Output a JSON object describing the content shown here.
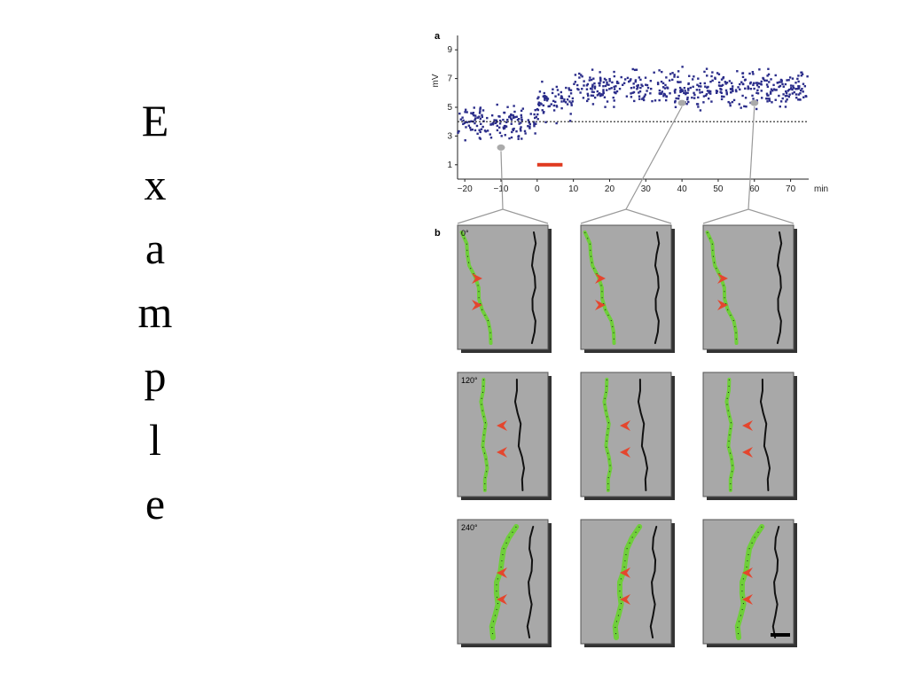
{
  "slide": {
    "letters": [
      "E",
      "x",
      "a",
      "m",
      "p",
      "l",
      "e"
    ]
  },
  "chart_data": {
    "type": "scatter",
    "panel_label": "a",
    "ylabel": "mV",
    "xlabel": "min",
    "x_ticks": [
      "−20",
      "−10",
      "0",
      "10",
      "20",
      "30",
      "40",
      "50",
      "60",
      "70"
    ],
    "y_ticks": [
      "1",
      "3",
      "5",
      "7",
      "9"
    ],
    "xlim": [
      -22,
      75
    ],
    "ylim": [
      0,
      10
    ],
    "baseline_mv": 4.0,
    "stimulus_bar": {
      "x_start": 0,
      "x_end": 7,
      "y": 1.0
    },
    "marked_times": [
      -10,
      40,
      60
    ],
    "segments": [
      {
        "x_start": -22,
        "x_end": 0,
        "mean": 3.9,
        "spread": 1.0
      },
      {
        "x_start": 0,
        "x_end": 10,
        "mean": 5.5,
        "spread": 1.2
      },
      {
        "x_start": 10,
        "x_end": 75,
        "mean": 6.3,
        "spread": 1.1
      }
    ]
  },
  "panel_b": {
    "panel_label": "b",
    "rows": [
      {
        "time_label": "0°",
        "variant": 0
      },
      {
        "time_label": "120°",
        "variant": 1
      },
      {
        "time_label": "240°",
        "variant": 2
      }
    ]
  },
  "colors": {
    "dots": "#2b2d8a",
    "stimulus": "#e03a20",
    "dendrite_green": "#6fcf3a",
    "dendrite_black": "#111111",
    "arrow": "#e4462e",
    "panel_bg": "#a8a8a8",
    "shadow": "#333333"
  }
}
